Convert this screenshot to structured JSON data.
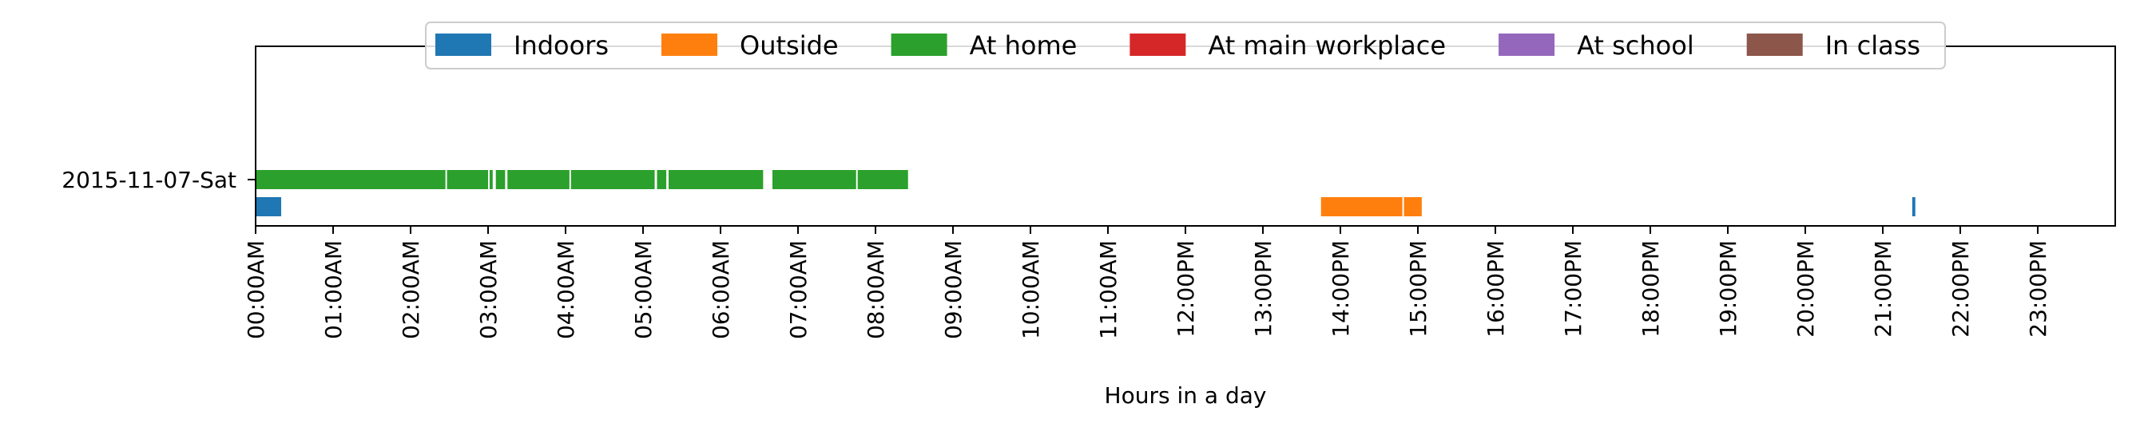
{
  "chart_data": {
    "type": "timeline",
    "title": "",
    "xlabel": "Hours in a day",
    "ylabel": "",
    "xlim": [
      0,
      24
    ],
    "x_ticks": [
      "00:00AM",
      "01:00AM",
      "02:00AM",
      "03:00AM",
      "04:00AM",
      "05:00AM",
      "06:00AM",
      "07:00AM",
      "08:00AM",
      "09:00AM",
      "10:00AM",
      "11:00AM",
      "12:00PM",
      "13:00PM",
      "14:00PM",
      "15:00PM",
      "16:00PM",
      "17:00PM",
      "18:00PM",
      "19:00PM",
      "20:00PM",
      "21:00PM",
      "22:00PM",
      "23:00PM"
    ],
    "y_categories": [
      "2015-11-07-Sat"
    ],
    "legend_position": "upper-center",
    "grid": false,
    "series": [
      {
        "name": "Indoors",
        "color": "#1f77b4",
        "lane": 0,
        "intervals": [
          [
            0.0,
            0.33
          ],
          [
            21.38,
            21.42
          ]
        ]
      },
      {
        "name": "Outside",
        "color": "#ff7f0e",
        "lane": 0,
        "intervals": [
          [
            13.75,
            14.8
          ],
          [
            14.82,
            15.05
          ]
        ]
      },
      {
        "name": "At home",
        "color": "#2ca02c",
        "lane": 1,
        "intervals": [
          [
            0.0,
            2.45
          ],
          [
            2.47,
            3.0
          ],
          [
            3.02,
            3.06
          ],
          [
            3.1,
            3.22
          ],
          [
            3.25,
            4.05
          ],
          [
            4.07,
            5.15
          ],
          [
            5.18,
            5.3
          ],
          [
            5.33,
            6.55
          ],
          [
            6.67,
            7.75
          ],
          [
            7.77,
            8.42
          ]
        ]
      },
      {
        "name": "At main workplace",
        "color": "#d62728",
        "lane": 2,
        "intervals": []
      },
      {
        "name": "At school",
        "color": "#9467bd",
        "lane": 3,
        "intervals": []
      },
      {
        "name": "In class",
        "color": "#8c564b",
        "lane": 4,
        "intervals": []
      }
    ]
  }
}
